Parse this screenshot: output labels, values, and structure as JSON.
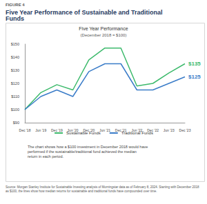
{
  "chart_data": {
    "type": "line",
    "figure_label": "FIGURE 4",
    "title": "Five Year Performance of Sustainable and Traditional Funds",
    "chart_title": "Five Year Performance",
    "subtitle": "(December 2018 = $100)",
    "categories": [
      "Dec '18",
      "Jun '19",
      "Dec '19",
      "Jun '20",
      "Dec '20",
      "Jun '21",
      "Dec '21",
      "Jun '22",
      "Dec '22",
      "Jun '23",
      "Dec '23"
    ],
    "series": [
      {
        "name": "Sustainable Funds",
        "color": "#3dba6c",
        "values": [
          100,
          113,
          119,
          115,
          138,
          147,
          147,
          118,
          120,
          128,
          135
        ],
        "value_labels": [
          null,
          null,
          null,
          null,
          null,
          null,
          null,
          null,
          null,
          null,
          "$135"
        ]
      },
      {
        "name": "Traditional Funds",
        "color": "#3a7cc8",
        "values": [
          100,
          110,
          115,
          110,
          129,
          135,
          135,
          115,
          115,
          120,
          125
        ],
        "value_labels": [
          null,
          null,
          null,
          null,
          null,
          null,
          null,
          null,
          null,
          null,
          "$125"
        ]
      }
    ],
    "ylim": [
      90,
      150
    ],
    "yticks": [
      {
        "value": 90,
        "label": "$90"
      },
      {
        "value": 100,
        "label": "$100"
      },
      {
        "value": 110,
        "label": "$110"
      },
      {
        "value": 120,
        "label": "$120"
      },
      {
        "value": 130,
        "label": "$130"
      },
      {
        "value": 140,
        "label": "$140"
      },
      {
        "value": 150,
        "label": "$150"
      }
    ],
    "grid": false,
    "legend": "bottom",
    "data_labels": true,
    "caption": "The chart shows how a $100 investment in December 2018 would have performed if the sustainable/traditional fund achieved the median return in each period.",
    "source": "Source: Morgan Stanley Institute for Sustainable Investing analysis of Morningstar data as of February 8, 2024. Starting with December 2018 as $100, the lines show how median returns for sustainable and traditional funds have compounded over time."
  }
}
